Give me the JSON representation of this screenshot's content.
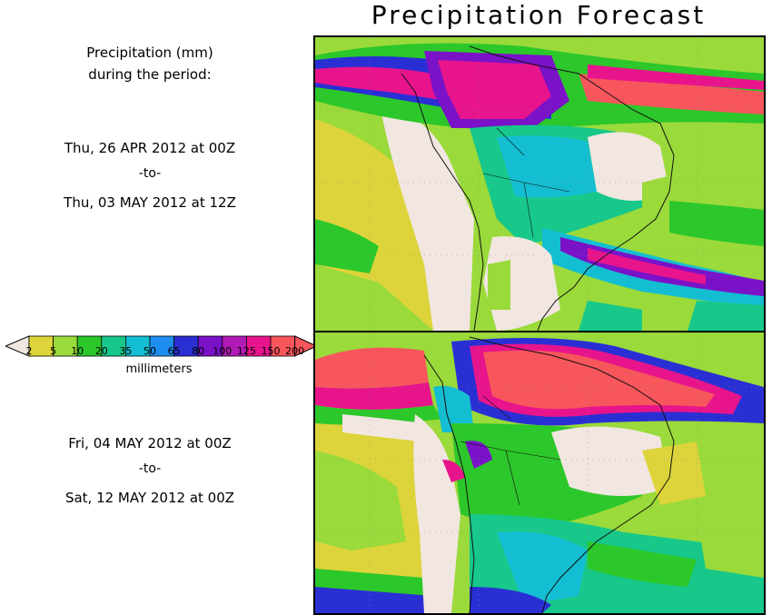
{
  "title": "Precipitation Forecast",
  "legend": {
    "heading_line1": "Precipitation (mm)",
    "heading_line2": "during the period:",
    "units": "millimeters",
    "ticks": [
      "2",
      "5",
      "10",
      "20",
      "35",
      "50",
      "65",
      "80",
      "100",
      "125",
      "150",
      "200"
    ],
    "colors": [
      "#dcd43a",
      "#9ada3a",
      "#2cc72a",
      "#17c88a",
      "#14bed2",
      "#1e8ff0",
      "#2a2fd4",
      "#7a12c8",
      "#b01ab4",
      "#e8148c",
      "#f7565c"
    ],
    "low_color": "#f2e6e1",
    "high_color": "#f7565c"
  },
  "periods": [
    {
      "start": "Thu, 26 APR 2012 at 00Z",
      "separator": "-to-",
      "end": "Thu, 03 MAY 2012 at 12Z"
    },
    {
      "start": "Fri, 04 MAY 2012 at 00Z",
      "separator": "-to-",
      "end": "Sat, 12 MAY 2012 at 00Z"
    }
  ]
}
